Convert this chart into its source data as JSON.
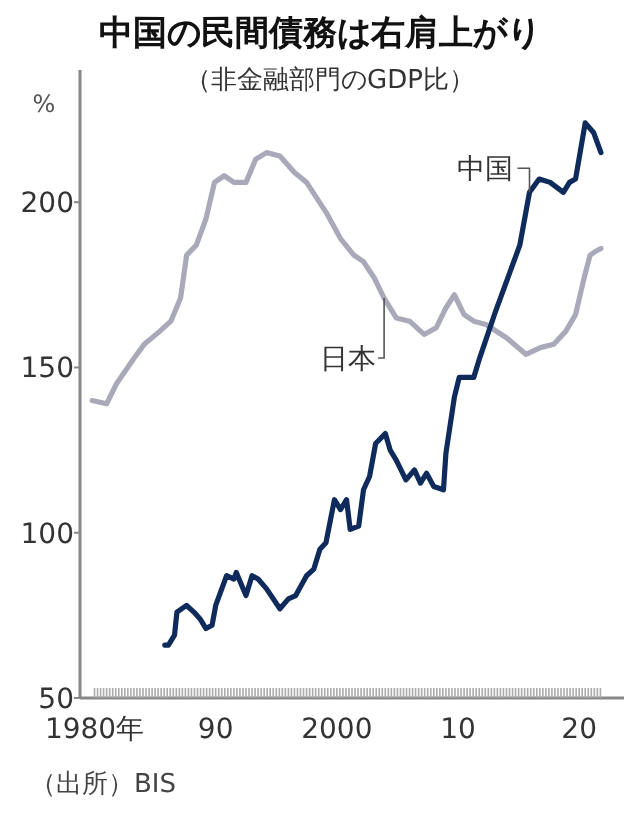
{
  "chart_data": {
    "type": "line",
    "title": "中国の民間債務は右肩上がり",
    "subtitle": "（非金融部門のGDP比）",
    "ylabel": "%",
    "annotations": [
      "（出所）BIS"
    ],
    "xlim": [
      1978.8,
      2023.7
    ],
    "ylim": [
      50,
      240
    ],
    "xticks": [
      {
        "value": 1980,
        "label": "1980年"
      },
      {
        "value": 1990,
        "label": "90"
      },
      {
        "value": 2000,
        "label": "2000"
      },
      {
        "value": 2010,
        "label": "10"
      },
      {
        "value": 2020,
        "label": "20"
      }
    ],
    "yticks": [
      50,
      100,
      150,
      200
    ],
    "grid": false,
    "marker": "none",
    "line_style": "solid",
    "series": [
      {
        "name": "日本",
        "color": "#a9a9ba",
        "x": [
          1979.8,
          1981,
          1981.8,
          1983.3,
          1984.1,
          1985.4,
          1986.3,
          1987.1,
          1987.6,
          1988.4,
          1989.2,
          1989.9,
          1990.7,
          1991.5,
          1992.5,
          1993.3,
          1994.2,
          1995.3,
          1996.5,
          1997.5,
          1999.1,
          2000.3,
          2001.4,
          2002.2,
          2003.1,
          2003.9,
          2004.9,
          2006,
          2007.2,
          2008.2,
          2009,
          2009.7,
          2010.5,
          2011.3,
          2012.3,
          2014,
          2015.6,
          2016.8,
          2017.9,
          2018.9,
          2019.7,
          2020.4,
          2020.9,
          2021.3,
          2021.8
        ],
        "values": [
          140,
          139,
          145,
          153,
          157,
          161,
          164,
          171,
          184,
          187,
          195,
          206,
          208,
          206,
          206,
          213,
          215,
          214,
          209,
          206,
          197,
          189,
          184,
          182,
          177,
          171,
          165,
          164,
          160,
          162,
          168,
          172,
          166,
          164,
          163,
          159,
          154,
          156,
          157,
          161,
          166,
          177,
          184,
          185,
          186
        ]
      },
      {
        "name": "中国",
        "color": "#0f2b5b",
        "x": [
          1985.8,
          1986.1,
          1986.6,
          1986.8,
          1987.6,
          1988.2,
          1988.7,
          1989.2,
          1989.7,
          1990,
          1990.9,
          1991.5,
          1991.7,
          1992.5,
          1993,
          1993.5,
          1994.2,
          1995.3,
          1996,
          1996.6,
          1997.5,
          1998.1,
          1998.6,
          1999.1,
          1999.8,
          2000.3,
          2000.8,
          2001.1,
          2001.8,
          2002.2,
          2002.7,
          2003.2,
          2004,
          2004.4,
          2004.9,
          2005.7,
          2006.4,
          2006.9,
          2007.4,
          2008,
          2008.8,
          2009,
          2009.7,
          2010.1,
          2011.3,
          2011.8,
          2013.1,
          2014.3,
          2015.1,
          2015.9,
          2016.7,
          2017.6,
          2018.7,
          2019.2,
          2019.7,
          2020.5,
          2021.2,
          2021.8
        ],
        "values": [
          66,
          66,
          69,
          76,
          78,
          76,
          74,
          71,
          72,
          78,
          87,
          86,
          88,
          81,
          87,
          86,
          83,
          77,
          80,
          81,
          87,
          89,
          95,
          97,
          110,
          107,
          110,
          101,
          102,
          113,
          117,
          127,
          130,
          125,
          122,
          116,
          119,
          115,
          118,
          114,
          113,
          124,
          141,
          147,
          147,
          153,
          167,
          179,
          187,
          203,
          207,
          206,
          203,
          206,
          207,
          224,
          221,
          215
        ]
      }
    ]
  }
}
